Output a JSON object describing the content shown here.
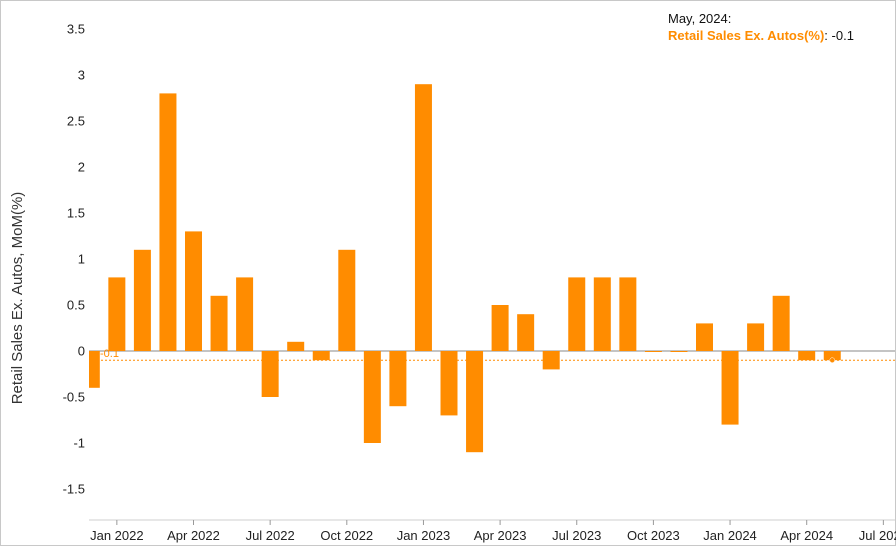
{
  "tooltip": {
    "date": "May, 2024:",
    "series_name": "Retail Sales Ex. Autos(%)",
    "value": ": -0.1"
  },
  "colors": {
    "bar": "#ff8c00",
    "reference_line": "#ff8c00"
  },
  "chart_data": {
    "type": "bar",
    "title": "",
    "xlabel": "",
    "ylabel": "Retail Sales Ex. Autos, MoM(%)",
    "ylim": [
      -2.0,
      3.7
    ],
    "yticks": [
      -1.5,
      -1,
      -0.5,
      0,
      0.5,
      1,
      1.5,
      2,
      2.5,
      3,
      3.5
    ],
    "ytick_labels": [
      "-1.5",
      "-1",
      "-0.5",
      "0",
      "0.5",
      "1",
      "1.5",
      "2",
      "2.5",
      "3",
      "3.5"
    ],
    "xtick_labels": [
      "Jan 2022",
      "Apr 2022",
      "Jul 2022",
      "Oct 2022",
      "Jan 2023",
      "Apr 2023",
      "Jul 2023",
      "Oct 2023",
      "Jan 2024",
      "Apr 2024",
      "Jul 2024"
    ],
    "categories": [
      "Dec 2021",
      "Jan 2022",
      "Feb 2022",
      "Mar 2022",
      "Apr 2022",
      "May 2022",
      "Jun 2022",
      "Jul 2022",
      "Aug 2022",
      "Sep 2022",
      "Oct 2022",
      "Nov 2022",
      "Dec 2022",
      "Jan 2023",
      "Feb 2023",
      "Mar 2023",
      "Apr 2023",
      "May 2023",
      "Jun 2023",
      "Jul 2023",
      "Aug 2023",
      "Sep 2023",
      "Oct 2023",
      "Nov 2023",
      "Dec 2023",
      "Jan 2024",
      "Feb 2024",
      "Mar 2024",
      "Apr 2024",
      "May 2024"
    ],
    "series": [
      {
        "name": "Retail Sales Ex. Autos(%)",
        "values": [
          -0.4,
          0.8,
          1.1,
          2.8,
          1.3,
          0.6,
          0.8,
          -0.5,
          0.1,
          -0.1,
          1.1,
          -1.0,
          -0.6,
          2.9,
          -0.7,
          -1.1,
          0.5,
          0.4,
          -0.2,
          0.8,
          0.8,
          0.8,
          0.0,
          0.0,
          0.3,
          -0.8,
          0.3,
          0.6,
          -0.1,
          -0.1
        ]
      }
    ],
    "reference_line": {
      "value": -0.1,
      "label": "-0.1"
    },
    "grid": false,
    "legend": "none"
  }
}
